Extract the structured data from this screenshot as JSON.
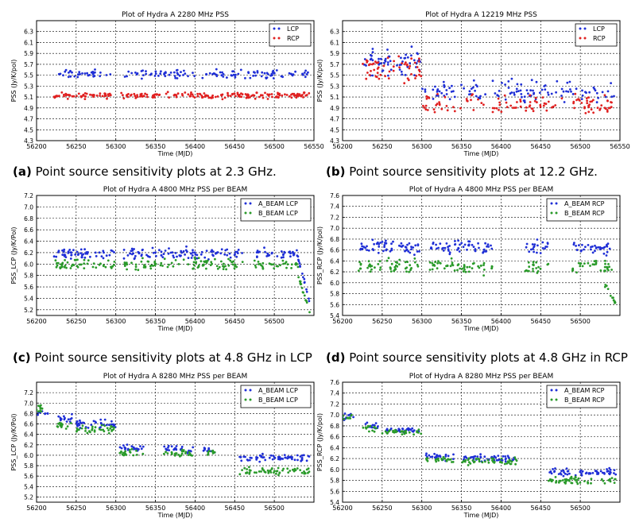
{
  "figure": {
    "captions": [
      {
        "label": "(a)",
        "text": "Point source sensitivity plots at 2.3 GHz."
      },
      {
        "label": "(b)",
        "text": "Point source sensitivity plots at 12.2 GHz."
      },
      {
        "label": "(c)",
        "text": "Point source sensitivity plots at 4.8 GHz in LCP"
      },
      {
        "label": "(d)",
        "text": "Point source sensitivity plots at 4.8 GHz in RCP"
      }
    ]
  },
  "chart_data": [
    {
      "type": "scatter",
      "title": "Plot of  Hydra A 2280 MHz  PSS",
      "xlabel": "Time (MJD)",
      "ylabel": "PSS (Jy/K/pol)",
      "xlim": [
        56200,
        56550
      ],
      "ylim": [
        4.3,
        6.5
      ],
      "xticks": [
        "56200",
        "56250",
        "56300",
        "56350",
        "56400",
        "56450",
        "56500",
        "56550"
      ],
      "yticks": [
        "4.3",
        "4.5",
        "4.7",
        "4.9",
        "5.1",
        "5.3",
        "5.5",
        "5.7",
        "5.9",
        "6.1",
        "6.3"
      ],
      "grid": true,
      "legend": "top-right",
      "series": [
        {
          "name": "LCP",
          "color": "#1f2fd6",
          "center": 5.52,
          "spread": 0.07,
          "segments": [
            [
              56222,
              56295
            ],
            [
              56310,
              56545
            ]
          ],
          "count": 150
        },
        {
          "name": "RCP",
          "color": "#e02020",
          "center": 5.13,
          "spread": 0.05,
          "segments": [
            [
              56222,
              56295
            ],
            [
              56305,
              56545
            ]
          ],
          "count": 220
        }
      ]
    },
    {
      "type": "scatter",
      "title": "Plot of  Hydra A 12219 MHz  PSS",
      "xlabel": "Time (MJD)",
      "ylabel": "PSS (Jy/K/pol)",
      "xlim": [
        56200,
        56550
      ],
      "ylim": [
        4.3,
        6.5
      ],
      "xticks": [
        "56200",
        "56250",
        "56300",
        "56350",
        "56400",
        "56450",
        "56500",
        "56550"
      ],
      "yticks": [
        "4.3",
        "4.5",
        "4.7",
        "4.9",
        "5.1",
        "5.3",
        "5.5",
        "5.7",
        "5.9",
        "6.1",
        "6.3"
      ],
      "grid": true,
      "legend": "top-right",
      "series": [
        {
          "name": "LCP",
          "color": "#1f2fd6",
          "center": 5.75,
          "spread": 0.22,
          "segments": [
            [
              56225,
              56300
            ]
          ],
          "count": 60,
          "extra": {
            "center": 5.2,
            "spread": 0.17,
            "segments": [
              [
                56300,
                56545
              ]
            ],
            "count": 120
          }
        },
        {
          "name": "RCP",
          "color": "#e02020",
          "center": 5.6,
          "spread": 0.25,
          "segments": [
            [
              56225,
              56300
            ]
          ],
          "count": 55,
          "extra": {
            "center": 4.95,
            "spread": 0.17,
            "segments": [
              [
                56300,
                56545
              ]
            ],
            "count": 120
          }
        }
      ]
    },
    {
      "type": "scatter",
      "title": "Plot of  Hydra A 4800 MHz  PSS per BEAM",
      "xlabel": "Time (MJD)",
      "ylabel": "PSS_LCP (Jy/K/Pol)",
      "xlim": [
        56200,
        56550
      ],
      "ylim": [
        5.1,
        7.2
      ],
      "xticks": [
        "56200",
        "56250",
        "56300",
        "56350",
        "56400",
        "56450",
        "56500"
      ],
      "yticks": [
        "5.2",
        "5.4",
        "5.6",
        "5.8",
        "6.0",
        "6.2",
        "6.4",
        "6.6",
        "6.8",
        "7.0",
        "7.2"
      ],
      "grid": true,
      "legend": "top-right",
      "series": [
        {
          "name": "A_BEAM  LCP",
          "color": "#1f2fd6",
          "center": 6.18,
          "spread": 0.09,
          "segments": [
            [
              56220,
              56300
            ],
            [
              56310,
              56460
            ],
            [
              56475,
              56530
            ]
          ],
          "count": 180,
          "tail": {
            "from": 56530,
            "to": 56545,
            "start": 6.1,
            "end": 5.3
          }
        },
        {
          "name": "B_BEAM   LCP",
          "color": "#2a9a2a",
          "center": 6.0,
          "spread": 0.09,
          "segments": [
            [
              56220,
              56300
            ],
            [
              56310,
              56460
            ],
            [
              56475,
              56530
            ]
          ],
          "count": 170,
          "tail": {
            "from": 56530,
            "to": 56545,
            "start": 5.8,
            "end": 5.15
          }
        }
      ]
    },
    {
      "type": "scatter",
      "title": "Plot of  Hydra A 4800 MHz  PSS per BEAM",
      "xlabel": "Time (MJD)",
      "ylabel": "PSS_RCP (Jy/K/pol)",
      "xlim": [
        56200,
        56550
      ],
      "ylim": [
        5.4,
        7.6
      ],
      "xticks": [
        "56200",
        "56250",
        "56300",
        "56350",
        "56400",
        "56450",
        "56500"
      ],
      "yticks": [
        "5.4",
        "5.6",
        "5.8",
        "6.0",
        "6.2",
        "6.4",
        "6.6",
        "6.8",
        "7.0",
        "7.2",
        "7.4",
        "7.6"
      ],
      "grid": true,
      "legend": "top-right",
      "series": [
        {
          "name": "A_BEAM RCP",
          "color": "#1f2fd6",
          "center": 6.65,
          "spread": 0.12,
          "segments": [
            [
              56220,
              56300
            ],
            [
              56310,
              56390
            ],
            [
              56430,
              56460
            ],
            [
              56490,
              56540
            ]
          ],
          "count": 170
        },
        {
          "name": "B_BEAM  RCP",
          "color": "#2a9a2a",
          "center": 6.3,
          "spread": 0.12,
          "segments": [
            [
              56220,
              56300
            ],
            [
              56310,
              56390
            ],
            [
              56430,
              56460
            ],
            [
              56490,
              56540
            ]
          ],
          "count": 160,
          "tail": {
            "from": 56530,
            "to": 56545,
            "start": 6.0,
            "end": 5.6
          }
        }
      ]
    },
    {
      "type": "scatter",
      "title": "Plot of  Hydra A 8280 MHz  PSS per BEAM",
      "xlabel": "Time (MJD)",
      "ylabel": "PSS_LCP (Jy/K/Pol)",
      "xlim": [
        56200,
        56550
      ],
      "ylim": [
        5.1,
        7.4
      ],
      "xticks": [
        "56200",
        "56250",
        "56300",
        "56350",
        "56400",
        "56450",
        "56500"
      ],
      "yticks": [
        "5.2",
        "5.4",
        "5.6",
        "5.8",
        "6.0",
        "6.2",
        "6.4",
        "6.6",
        "6.8",
        "7.0",
        "7.2"
      ],
      "grid": true,
      "legend": "top-right",
      "series": [
        {
          "name": "A_BEAM LCP",
          "color": "#1f2fd6",
          "levels": [
            [
              56200,
              56215,
              6.8
            ],
            [
              56225,
              56245,
              6.7
            ],
            [
              56250,
              56300,
              6.6
            ],
            [
              56305,
              56335,
              6.15
            ],
            [
              56360,
              56400,
              6.1
            ],
            [
              56410,
              56425,
              6.1
            ],
            [
              56455,
              56545,
              5.95
            ]
          ],
          "spread": 0.07,
          "count": 180
        },
        {
          "name": "B_BEAM   LCP",
          "color": "#2a9a2a",
          "levels": [
            [
              56200,
              56215,
              6.9
            ],
            [
              56225,
              56245,
              6.6
            ],
            [
              56250,
              56300,
              6.5
            ],
            [
              56305,
              56335,
              6.05
            ],
            [
              56360,
              56400,
              6.05
            ],
            [
              56410,
              56425,
              6.05
            ],
            [
              56455,
              56545,
              5.7
            ]
          ],
          "spread": 0.07,
          "count": 170
        }
      ]
    },
    {
      "type": "scatter",
      "title": "Plot of  Hydra A 8280 MHz  PSS per BEAM",
      "xlabel": "Time (MJD)",
      "ylabel": "PSS_RCP (Jy/K/pol)",
      "xlim": [
        56200,
        56550
      ],
      "ylim": [
        5.4,
        7.6
      ],
      "xticks": [
        "56200",
        "56250",
        "56300",
        "56350",
        "56400",
        "56450",
        "56500"
      ],
      "yticks": [
        "5.4",
        "5.6",
        "5.8",
        "6.0",
        "6.2",
        "6.4",
        "6.6",
        "6.8",
        "7.0",
        "7.2",
        "7.4",
        "7.6"
      ],
      "grid": true,
      "legend": "top-right",
      "series": [
        {
          "name": "A_BEAM RCP",
          "color": "#1f2fd6",
          "levels": [
            [
              56200,
              56215,
              6.97
            ],
            [
              56225,
              56245,
              6.8
            ],
            [
              56250,
              56300,
              6.72
            ],
            [
              56305,
              56340,
              6.22
            ],
            [
              56350,
              56420,
              6.2
            ],
            [
              56460,
              56545,
              5.95
            ]
          ],
          "spread": 0.06,
          "count": 180
        },
        {
          "name": "B_BEAM  RCP",
          "color": "#2a9a2a",
          "levels": [
            [
              56200,
              56215,
              6.95
            ],
            [
              56225,
              56245,
              6.75
            ],
            [
              56250,
              56300,
              6.68
            ],
            [
              56305,
              56340,
              6.18
            ],
            [
              56350,
              56420,
              6.15
            ],
            [
              56460,
              56545,
              5.8
            ]
          ],
          "spread": 0.06,
          "count": 170
        }
      ]
    }
  ]
}
